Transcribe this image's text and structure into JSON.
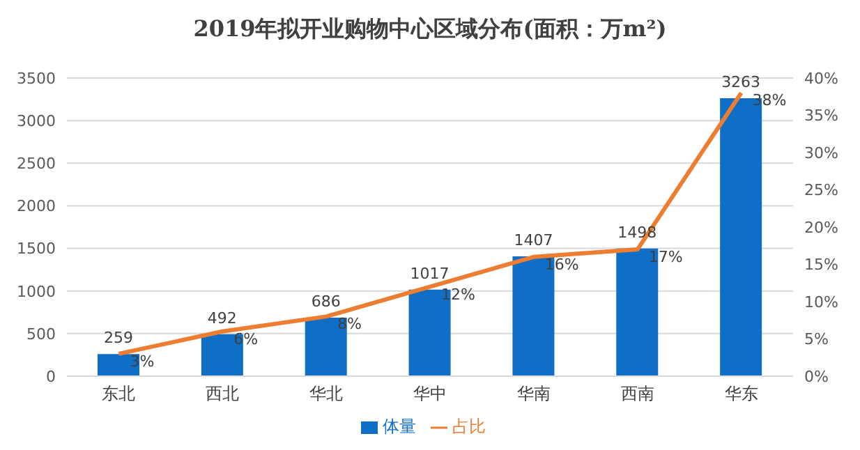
{
  "chart_data": {
    "type": "bar",
    "title": "2019年拟开业购物中心区域分布(面积：万m²)",
    "categories": [
      "东北",
      "西北",
      "华北",
      "华中",
      "华南",
      "西南",
      "华东"
    ],
    "series": [
      {
        "name": "体量",
        "color": "#0f6fc6",
        "values": [
          259,
          492,
          686,
          1017,
          1407,
          1498,
          3263
        ]
      },
      {
        "name": "占比",
        "type": "line",
        "axis": "y2",
        "color": "#ed7d31",
        "values": [
          3,
          6,
          8,
          12,
          16,
          17,
          38
        ],
        "value_labels": [
          "3%",
          "6%",
          "8%",
          "12%",
          "16%",
          "17%",
          "38%"
        ]
      }
    ],
    "ylim": [
      0,
      3500
    ],
    "yticks": [
      0,
      500,
      1000,
      1500,
      2000,
      2500,
      3000,
      3500
    ],
    "y2lim": [
      0,
      40
    ],
    "y2ticks": [
      {
        "value": 0,
        "label": "0%"
      },
      {
        "value": 5,
        "label": "5%"
      },
      {
        "value": 10,
        "label": "10%"
      },
      {
        "value": 15,
        "label": "15%"
      },
      {
        "value": 20,
        "label": "20%"
      },
      {
        "value": 25,
        "label": "25%"
      },
      {
        "value": 30,
        "label": "30%"
      },
      {
        "value": 35,
        "label": "35%"
      },
      {
        "value": 40,
        "label": "40%"
      }
    ],
    "grid": "y",
    "legend": "bottom",
    "data_labels": true,
    "marker": "none",
    "line_style": "solid"
  }
}
